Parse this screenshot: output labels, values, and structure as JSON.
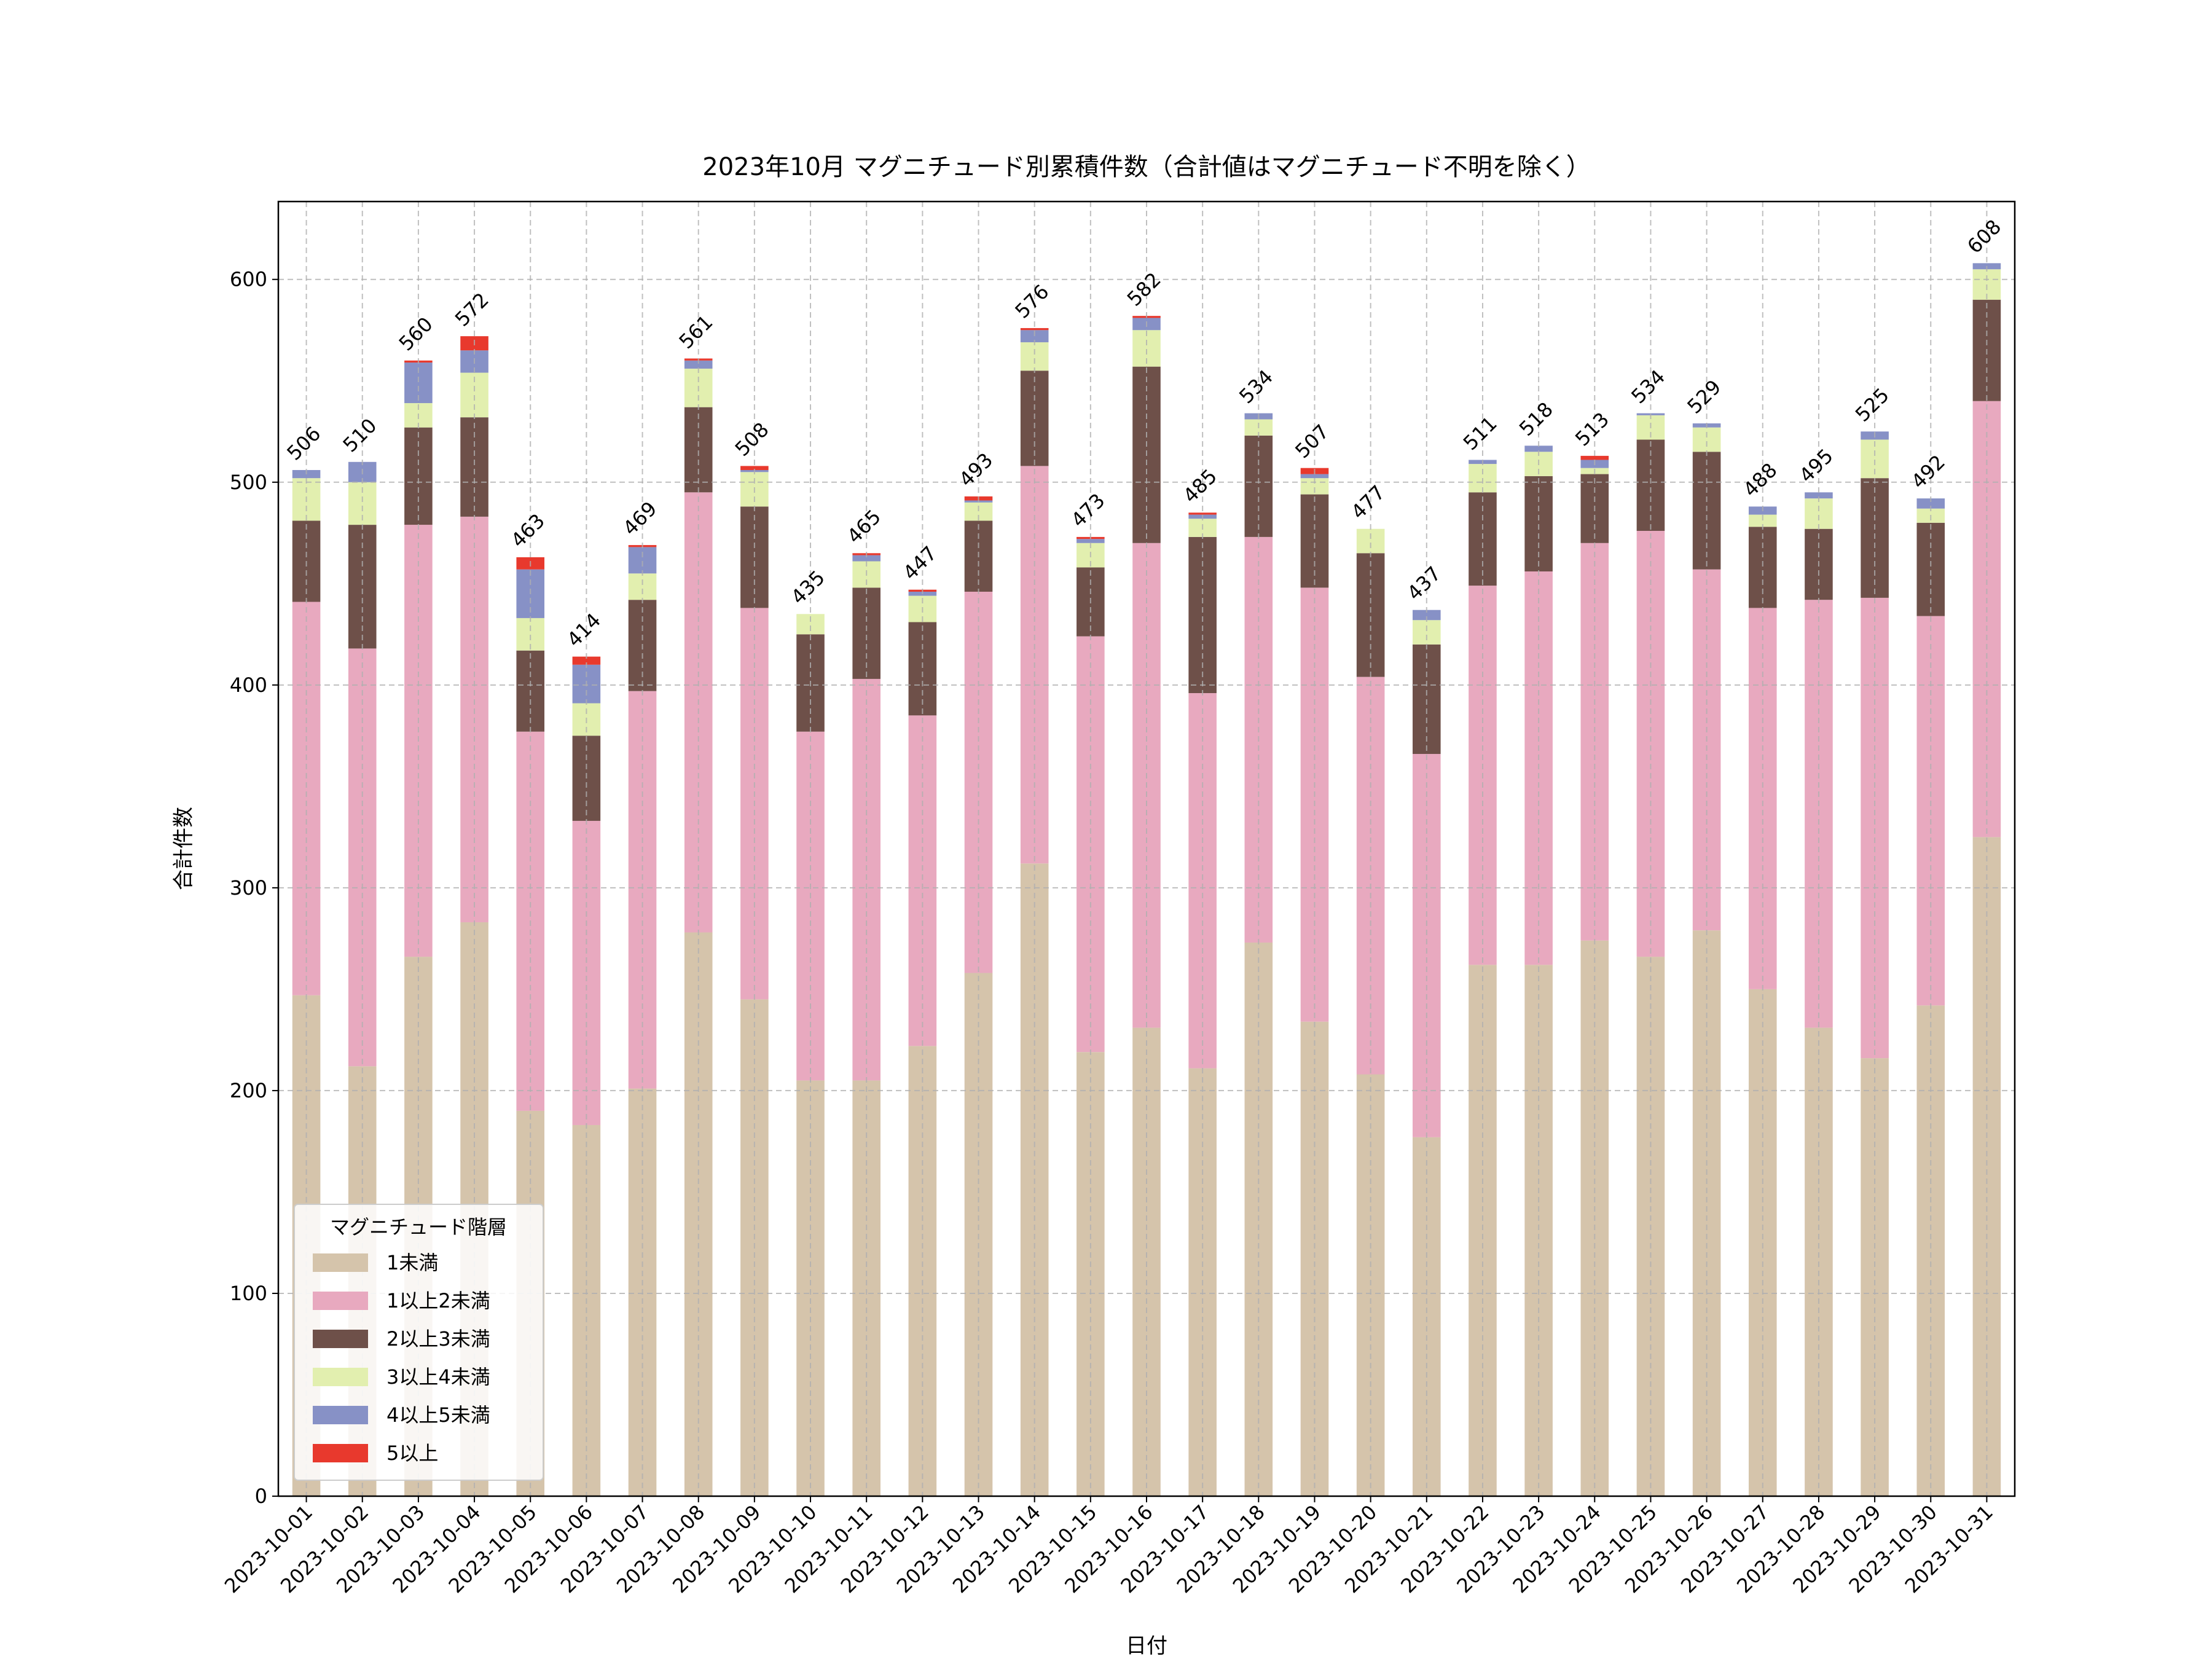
{
  "chart_data": {
    "type": "stacked_bar",
    "title": "2023年10月 マグニチュード別累積件数（合計値はマグニチュード不明を除く）",
    "x_label": "日付",
    "y_label": "合計件数",
    "legend_title": "マグニチュード階層",
    "legend_position": "lower left",
    "grid": true,
    "categories": [
      "2023-10-01",
      "2023-10-02",
      "2023-10-03",
      "2023-10-04",
      "2023-10-05",
      "2023-10-06",
      "2023-10-07",
      "2023-10-08",
      "2023-10-09",
      "2023-10-10",
      "2023-10-11",
      "2023-10-12",
      "2023-10-13",
      "2023-10-14",
      "2023-10-15",
      "2023-10-16",
      "2023-10-17",
      "2023-10-18",
      "2023-10-19",
      "2023-10-20",
      "2023-10-21",
      "2023-10-22",
      "2023-10-23",
      "2023-10-24",
      "2023-10-25",
      "2023-10-26",
      "2023-10-27",
      "2023-10-28",
      "2023-10-29",
      "2023-10-30",
      "2023-10-31"
    ],
    "series": [
      {
        "name": "1未満",
        "color": "#d5c4ab",
        "values": [
          247,
          212,
          266,
          283,
          190,
          183,
          201,
          278,
          245,
          205,
          205,
          222,
          258,
          312,
          219,
          231,
          211,
          273,
          234,
          208,
          177,
          262,
          262,
          274,
          266,
          279,
          250,
          231,
          216,
          242,
          325
        ]
      },
      {
        "name": "1以上2未満",
        "color": "#e8a9bf",
        "values": [
          194,
          206,
          213,
          200,
          187,
          150,
          196,
          217,
          193,
          172,
          198,
          163,
          188,
          196,
          205,
          239,
          185,
          200,
          214,
          196,
          189,
          187,
          194,
          196,
          210,
          178,
          188,
          211,
          227,
          192,
          215
        ]
      },
      {
        "name": "2以上3未満",
        "color": "#6e5049",
        "values": [
          40,
          61,
          48,
          49,
          40,
          42,
          45,
          42,
          50,
          48,
          45,
          46,
          35,
          47,
          34,
          87,
          77,
          50,
          46,
          61,
          54,
          46,
          47,
          34,
          45,
          58,
          40,
          35,
          59,
          46,
          50
        ]
      },
      {
        "name": "3以上4未満",
        "color": "#e2efaf",
        "values": [
          21,
          21,
          12,
          22,
          16,
          16,
          13,
          19,
          17,
          10,
          13,
          13,
          9,
          14,
          12,
          18,
          9,
          8,
          8,
          12,
          12,
          14,
          12,
          3,
          12,
          12,
          6,
          15,
          19,
          7,
          15
        ]
      },
      {
        "name": "4以上5未満",
        "color": "#8791c6",
        "values": [
          4,
          10,
          20,
          11,
          24,
          19,
          13,
          4,
          1,
          0,
          3,
          2,
          1,
          6,
          2,
          6,
          2,
          3,
          2,
          0,
          5,
          2,
          3,
          4,
          1,
          2,
          4,
          3,
          4,
          5,
          3
        ]
      },
      {
        "name": "5以上",
        "color": "#e8392d",
        "values": [
          0,
          0,
          1,
          7,
          6,
          4,
          1,
          1,
          2,
          0,
          1,
          1,
          2,
          1,
          1,
          1,
          1,
          0,
          3,
          0,
          0,
          0,
          0,
          2,
          0,
          0,
          0,
          0,
          0,
          0,
          0
        ]
      }
    ],
    "totals": [
      506,
      510,
      560,
      572,
      463,
      414,
      469,
      561,
      508,
      435,
      465,
      447,
      493,
      576,
      473,
      582,
      485,
      534,
      507,
      477,
      437,
      511,
      518,
      513,
      534,
      529,
      488,
      495,
      525,
      492,
      608
    ],
    "ylim": [
      0,
      638.4
    ],
    "yticks": [
      0,
      100,
      200,
      300,
      400,
      500,
      600
    ]
  }
}
